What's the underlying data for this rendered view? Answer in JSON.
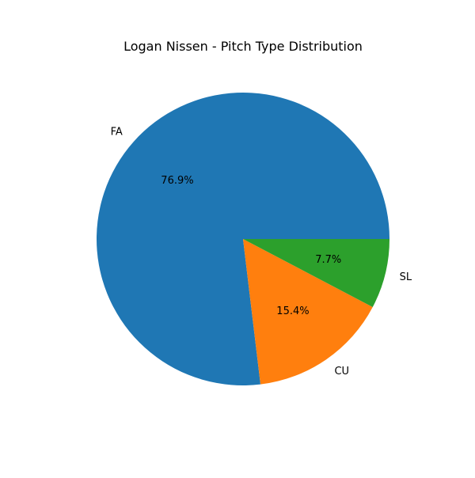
{
  "chart_data": {
    "type": "pie",
    "title": "Logan Nissen - Pitch Type Distribution",
    "categories": [
      "FA",
      "CU",
      "SL"
    ],
    "values": [
      76.9,
      15.4,
      7.7
    ],
    "percent_labels": [
      "76.9%",
      "15.4%",
      "7.7%"
    ],
    "colors": [
      "#1f77b4",
      "#ff7f0e",
      "#2ca02c"
    ],
    "start_angle": "0 degrees (3 o'clock), counter-clockwise",
    "legend": "none"
  }
}
